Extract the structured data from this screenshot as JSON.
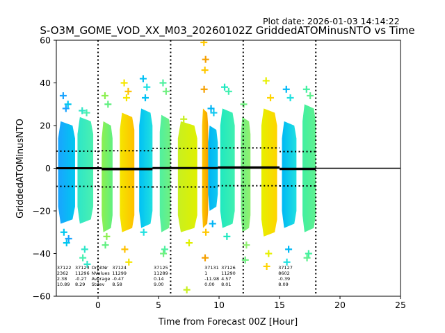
{
  "chart_data": {
    "type": "scatter",
    "title": "S-O3M_GOME_VOD_XX_M03_20260102Z GriddedATOMinusNTO vs Time",
    "subtitle": "Plot date: 2026-01-03 14:14:22",
    "xlabel": "Time from Forecast 00Z [Hour]",
    "ylabel": "GriddedATOMinusNTO",
    "xlim": [
      -3.45,
      25
    ],
    "ylim": [
      -60,
      60
    ],
    "xticks": [
      0,
      5,
      10,
      15,
      20,
      25
    ],
    "yticks": [
      -60,
      -40,
      -20,
      0,
      20,
      40,
      60
    ],
    "grid": false,
    "vlines": [
      0,
      6,
      12,
      18
    ],
    "zero_line": 0,
    "bands": [
      {
        "x0": -3.3,
        "x1": -1.9,
        "top": 22,
        "bottom": -26,
        "color_a": "#1aa3ff",
        "color_b": "#00c8f0",
        "outliers": [
          34,
          30,
          28,
          -30,
          -33,
          -35
        ]
      },
      {
        "x0": -1.7,
        "x1": -0.4,
        "top": 24,
        "bottom": -26,
        "color_a": "#2ee6c8",
        "color_b": "#4af0b0",
        "outliers": [
          27,
          26,
          -38,
          -42,
          -45
        ]
      },
      {
        "x0": 0.3,
        "x1": 1.2,
        "top": 22,
        "bottom": -30,
        "color_a": "#8cf050",
        "color_b": "#60f080",
        "outliers": [
          34,
          30,
          -32,
          -36
        ]
      },
      {
        "x0": 1.8,
        "x1": 3.0,
        "top": 26,
        "bottom": -30,
        "color_a": "#f5e600",
        "color_b": "#ffc000",
        "outliers": [
          40,
          36,
          33,
          -38,
          -44
        ]
      },
      {
        "x0": 3.4,
        "x1": 4.5,
        "top": 28,
        "bottom": -28,
        "color_a": "#00c0f5",
        "color_b": "#20e0e0",
        "outliers": [
          42,
          38,
          33,
          -30
        ]
      },
      {
        "x0": 5.1,
        "x1": 6.0,
        "top": 25,
        "bottom": -30,
        "color_a": "#50f0a0",
        "color_b": "#70f080",
        "outliers": [
          40,
          36,
          -38,
          -40
        ]
      },
      {
        "x0": 6.6,
        "x1": 8.2,
        "top": 22,
        "bottom": -30,
        "color_a": "#c8f020",
        "color_b": "#e0f000",
        "outliers": [
          23,
          -35,
          -57
        ]
      },
      {
        "x0": 8.6,
        "x1": 9.1,
        "top": 28,
        "bottom": -28,
        "color_a": "#ffc800",
        "color_b": "#f5a000",
        "outliers": [
          59,
          51,
          46,
          37,
          -30,
          -42
        ]
      },
      {
        "x0": 9.1,
        "x1": 9.9,
        "top": 20,
        "bottom": -20,
        "color_a": "#00b4f5",
        "color_b": "#10c8f0",
        "outliers": [
          28,
          26,
          -26
        ]
      },
      {
        "x0": 10.1,
        "x1": 11.3,
        "top": 28,
        "bottom": -28,
        "color_a": "#20e8c0",
        "color_b": "#40f0b0",
        "outliers": [
          38,
          36,
          -32
        ]
      },
      {
        "x0": 11.8,
        "x1": 12.6,
        "top": 24,
        "bottom": -30,
        "color_a": "#70f080",
        "color_b": "#90f070",
        "outliers": [
          30,
          -36,
          -43
        ]
      },
      {
        "x0": 13.5,
        "x1": 14.8,
        "top": 28,
        "bottom": -32,
        "color_a": "#e6f000",
        "color_b": "#ffd400",
        "outliers": [
          41,
          33,
          -40,
          -46
        ]
      },
      {
        "x0": 15.2,
        "x1": 16.4,
        "top": 22,
        "bottom": -28,
        "color_a": "#00b8f5",
        "color_b": "#20e0e0",
        "outliers": [
          37,
          33,
          -38,
          -44
        ]
      },
      {
        "x0": 16.9,
        "x1": 18.0,
        "top": 30,
        "bottom": -30,
        "color_a": "#40f0a0",
        "color_b": "#60f090",
        "outliers": [
          37,
          34,
          -40,
          -42
        ]
      }
    ],
    "mean_segments": [
      {
        "x0": -3.45,
        "x1": 0.3,
        "y": 0
      },
      {
        "x0": 0.3,
        "x1": 4.5,
        "y": -0.5
      },
      {
        "x0": 4.5,
        "x1": 9.9,
        "y": 0.1
      },
      {
        "x0": 9.9,
        "x1": 15.0,
        "y": 0.4
      },
      {
        "x0": 15.0,
        "x1": 18.0,
        "y": -0.4
      }
    ],
    "stdev_segments": [
      {
        "x0": -3.45,
        "x1": 0.3,
        "up": 8,
        "dn": -8.5
      },
      {
        "x0": 0.3,
        "x1": 4.5,
        "up": 8.2,
        "dn": -8.8
      },
      {
        "x0": 4.5,
        "x1": 9.9,
        "up": 9.3,
        "dn": -8.8
      },
      {
        "x0": 9.9,
        "x1": 15.0,
        "up": 9.5,
        "dn": -8.2
      },
      {
        "x0": 15.0,
        "x1": 18.0,
        "up": 7.8,
        "dn": -8.3
      }
    ],
    "stats_header": {
      "x": -0.9,
      "lines": [
        "OrbitNr",
        "NValues",
        "Average",
        "Stdev"
      ]
    },
    "stats_blocks": [
      {
        "x": -3.4,
        "lines": [
          "37122",
          "2362",
          "2.38",
          "10.89"
        ]
      },
      {
        "x": -1.9,
        "lines": [
          "37123",
          "11296",
          "-0.27",
          "8.29"
        ]
      },
      {
        "x": 0.4,
        "lines": [
          "37124",
          "11299",
          "-0.47",
          "8.58"
        ]
      },
      {
        "x": 4.6,
        "lines": [
          "37125",
          "11289",
          "0.14",
          "9.00"
        ]
      },
      {
        "x": 8.8,
        "lines": [
          "37131",
          "1",
          "-11.98",
          "0.00"
        ]
      },
      {
        "x": 9.6,
        "lines": [
          "37126",
          "11290",
          "4.57",
          "8.01"
        ]
      },
      {
        "x": 14.9,
        "lines": [
          "37127",
          "8602",
          "-0.39",
          "8.09"
        ]
      }
    ]
  }
}
